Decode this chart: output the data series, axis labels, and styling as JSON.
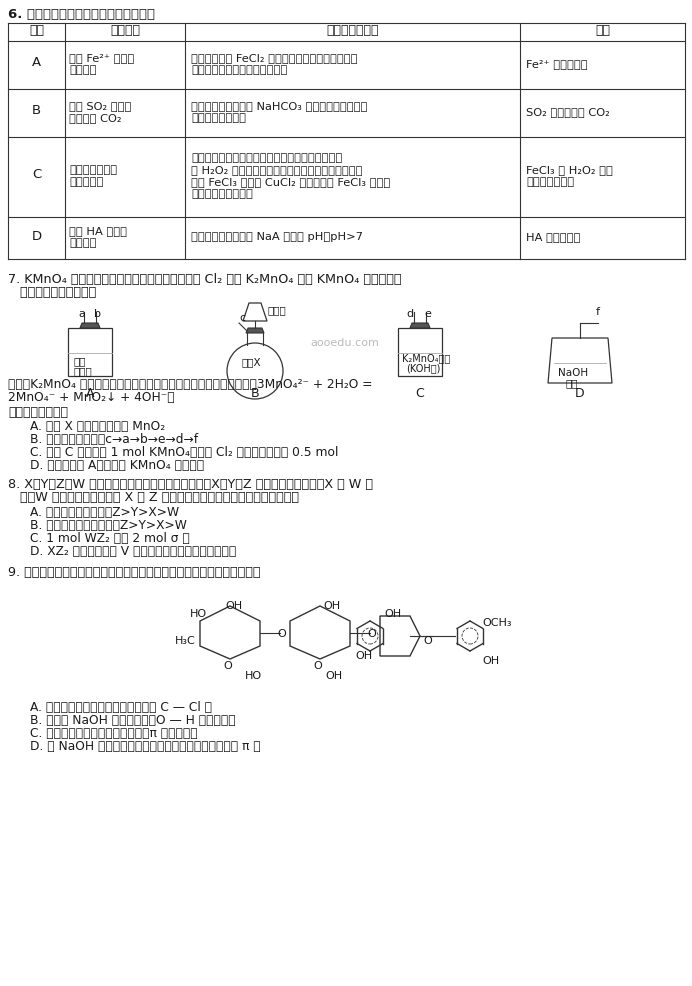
{
  "title_q6": "6. 下列实验设计及现象、结论合理的是",
  "table_headers": [
    "选项",
    "实验目的",
    "实验设计及现象",
    "结论"
  ],
  "table_rows": [
    [
      "A",
      "探究 Fe²⁺ 是否具\n有还原性",
      "向一定浓度的 FeCl₂ 溶液中滴加少量酸性高锰酸钾\n溶液，高锰酸钾溶液紫红色褪去",
      "Fe²⁺ 具有还原性"
    ],
    [
      "B",
      "检验 SO₂ 气体中\n是否混有 CO₂",
      "将气体依次通过饱和 NaHCO₃ 溶液和澄清石灰水，\n澄清石灰水变浑浊",
      "SO₂ 气体中混有 CO₂"
    ],
    [
      "C",
      "探究不同催化剂\n的催化效率",
      "两支试管中分别盛相同温度、相同浓度、相同体积\n的 H₂O₂ 溶液，分别滴加相同物质的量浓度、相同体\n积的 FeCl₃ 溶液与 CuCl₂ 溶液，滴加 FeCl₃ 溶液的\n试管中产生气体更快",
      "FeCl₃ 对 H₂O₂ 分解\n的催化效率更高"
    ],
    [
      "D",
      "探究 HA 是否是\n弱电解质",
      "测某温度下一定浓度 NaA 溶液的 pH，pH>7",
      "HA 是弱电解质"
    ]
  ],
  "title_q7": "7. KMnO₄ 是一种常用的氧化剂，某实验小组利用 Cl₂ 氧化 K₂MnO₄ 制备 KMnO₄ 的装置如图\n   所示（夹持装置略）。",
  "q7_known": "已知：K₂MnO₄ 在浓强碱溶液中可稳定存在，碱性减弱时易发生反应：3MnO₄²⁻ + 2H₂O =\n2MnO₄⁻ + MnO₂↓ + 4OH⁻。",
  "q7_question": "下列说法错误的是",
  "q7_options": [
    "A. 试剂 X 可以是漂白粉或 MnO₂",
    "B. 装置连接顺序是：c→a→b→e→d→f",
    "C. 装置 C 中每生成 1 mol KMnO₄，消耗 Cl₂ 的物质的量大于 0.5 mol",
    "D. 若去掉装置 A，会导致 KMnO₄ 产率降低"
  ],
  "title_q8": "8. X、Y、Z、W 为原子序数依次增大的同主族元素，X、Y、Z 位于同周期且相邻，X 与 W 同\n   族，W 的核外电子总数等于 X 和 Z 的核外电子总数之和。下列说法正确的是",
  "q8_options": [
    "A. 元素的第一电离能：Z>Y>X>W",
    "B. 简单氧化物的稳定性：Z>Y>X>W",
    "C. 1 mol WZ₂ 中有 2 mol σ 键",
    "D. XZ₂ 的空间结构为 V 形，属于含有极性键的极性分子"
  ],
  "title_q9": "9. 橙皮苷广泛存在于橘橙中，其结构简式（未考虑立体异构）如下所示：",
  "q9_options": [
    "A. 光照下与氯气反应，苯环上可形成 C — Cl 键",
    "B. 与足量 NaOH 水溶液反应，O — H 键均可断裂",
    "C. 催化剂存在下与足量氢气反应，π 键均可断裂",
    "D. 与 NaOH 醇溶液混合并加热，多羟基六元环上可形成 π 键"
  ],
  "bg_color": "#ffffff",
  "text_color": "#000000",
  "table_line_color": "#333333",
  "header_bg": "#ffffff"
}
